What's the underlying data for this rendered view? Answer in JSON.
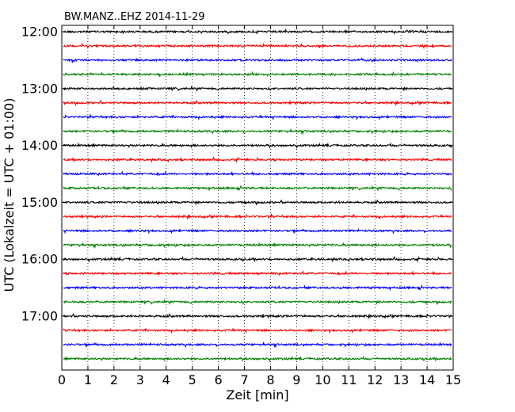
{
  "chart_data": {
    "type": "line",
    "title": "BW.MANZ..EHZ 2014-11-29",
    "xlabel": "Zeit  [min]",
    "ylabel": "UTC (Lokalzeit = UTC + 01:00)",
    "xlim": [
      0,
      15
    ],
    "x_ticks": [
      "0",
      "1",
      "2",
      "3",
      "4",
      "5",
      "6",
      "7",
      "8",
      "9",
      "10",
      "11",
      "12",
      "13",
      "14",
      "15"
    ],
    "y_tick_labels": [
      "12:00",
      "13:00",
      "14:00",
      "15:00",
      "16:00",
      "17:00"
    ],
    "trace_interval_min": 15,
    "trace_colors": [
      "#000000",
      "#ff0000",
      "#0000ff",
      "#008000"
    ],
    "grid": "vertical dotted",
    "traces": [
      {
        "start": "12:00"
      },
      {
        "start": "12:15"
      },
      {
        "start": "12:30"
      },
      {
        "start": "12:45"
      },
      {
        "start": "13:00"
      },
      {
        "start": "13:15"
      },
      {
        "start": "13:30"
      },
      {
        "start": "13:45"
      },
      {
        "start": "14:00"
      },
      {
        "start": "14:15"
      },
      {
        "start": "14:30"
      },
      {
        "start": "14:45"
      },
      {
        "start": "15:00"
      },
      {
        "start": "15:15"
      },
      {
        "start": "15:30"
      },
      {
        "start": "15:45"
      },
      {
        "start": "16:00"
      },
      {
        "start": "16:15"
      },
      {
        "start": "16:30"
      },
      {
        "start": "16:45"
      },
      {
        "start": "17:00"
      },
      {
        "start": "17:15"
      },
      {
        "start": "17:30"
      },
      {
        "start": "17:45"
      }
    ]
  }
}
